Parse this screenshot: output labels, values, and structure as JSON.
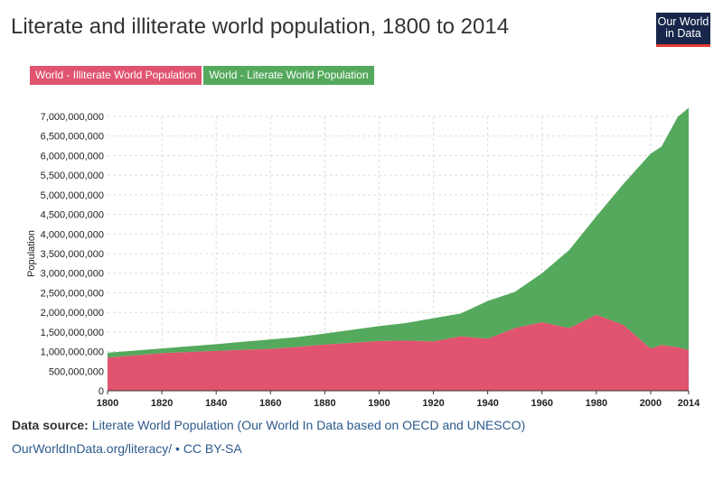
{
  "header": {
    "title": "Literate and illiterate world population, 1800 to 2014"
  },
  "logo": {
    "line1": "Our World",
    "line2": "in Data",
    "color": "#17264a",
    "accent": "#e23a2e"
  },
  "footer": {
    "source_label": "Data source:",
    "source_text": "Literate World Population (Our World In Data based on OECD and UNESCO)",
    "url": "OurWorldInData.org/literacy/",
    "license": "• CC BY-SA"
  },
  "chart_data": {
    "type": "area",
    "stacked": true,
    "title": "Literate and illiterate world population, 1800 to 2014",
    "xlabel": "",
    "ylabel": "Population",
    "xlim": [
      1800,
      2014
    ],
    "ylim": [
      0,
      7000000000
    ],
    "grid": true,
    "legend_position": "top-left",
    "x_ticks": [
      1800,
      1820,
      1840,
      1860,
      1880,
      1900,
      1920,
      1940,
      1960,
      1980,
      2000,
      2014
    ],
    "y_ticks": [
      "0",
      "500,000,000",
      "1,000,000,000",
      "1,500,000,000",
      "2,000,000,000",
      "2,500,000,000",
      "3,000,000,000",
      "3,500,000,000",
      "4,000,000,000",
      "4,500,000,000",
      "5,000,000,000",
      "5,500,000,000",
      "6,000,000,000",
      "6,500,000,000",
      "7,000,000,000"
    ],
    "x": [
      1800,
      1820,
      1840,
      1860,
      1870,
      1880,
      1900,
      1910,
      1920,
      1930,
      1940,
      1950,
      1960,
      1970,
      1980,
      1990,
      2000,
      2004,
      2010,
      2014
    ],
    "series": [
      {
        "name": "World - Illiterate World Population",
        "color": "#e0546f",
        "values": [
          850000000,
          960000000,
          1020000000,
          1070000000,
          1120000000,
          1180000000,
          1270000000,
          1280000000,
          1260000000,
          1390000000,
          1330000000,
          1600000000,
          1750000000,
          1600000000,
          1940000000,
          1680000000,
          1080000000,
          1170000000,
          1110000000,
          1040000000
        ]
      },
      {
        "name": "World - Literate World Population",
        "color": "#54a95c",
        "values": [
          120000000,
          120000000,
          170000000,
          240000000,
          250000000,
          280000000,
          380000000,
          450000000,
          590000000,
          580000000,
          960000000,
          920000000,
          1250000000,
          1990000000,
          2510000000,
          3600000000,
          4970000000,
          5060000000,
          5880000000,
          6180000000
        ]
      }
    ]
  }
}
